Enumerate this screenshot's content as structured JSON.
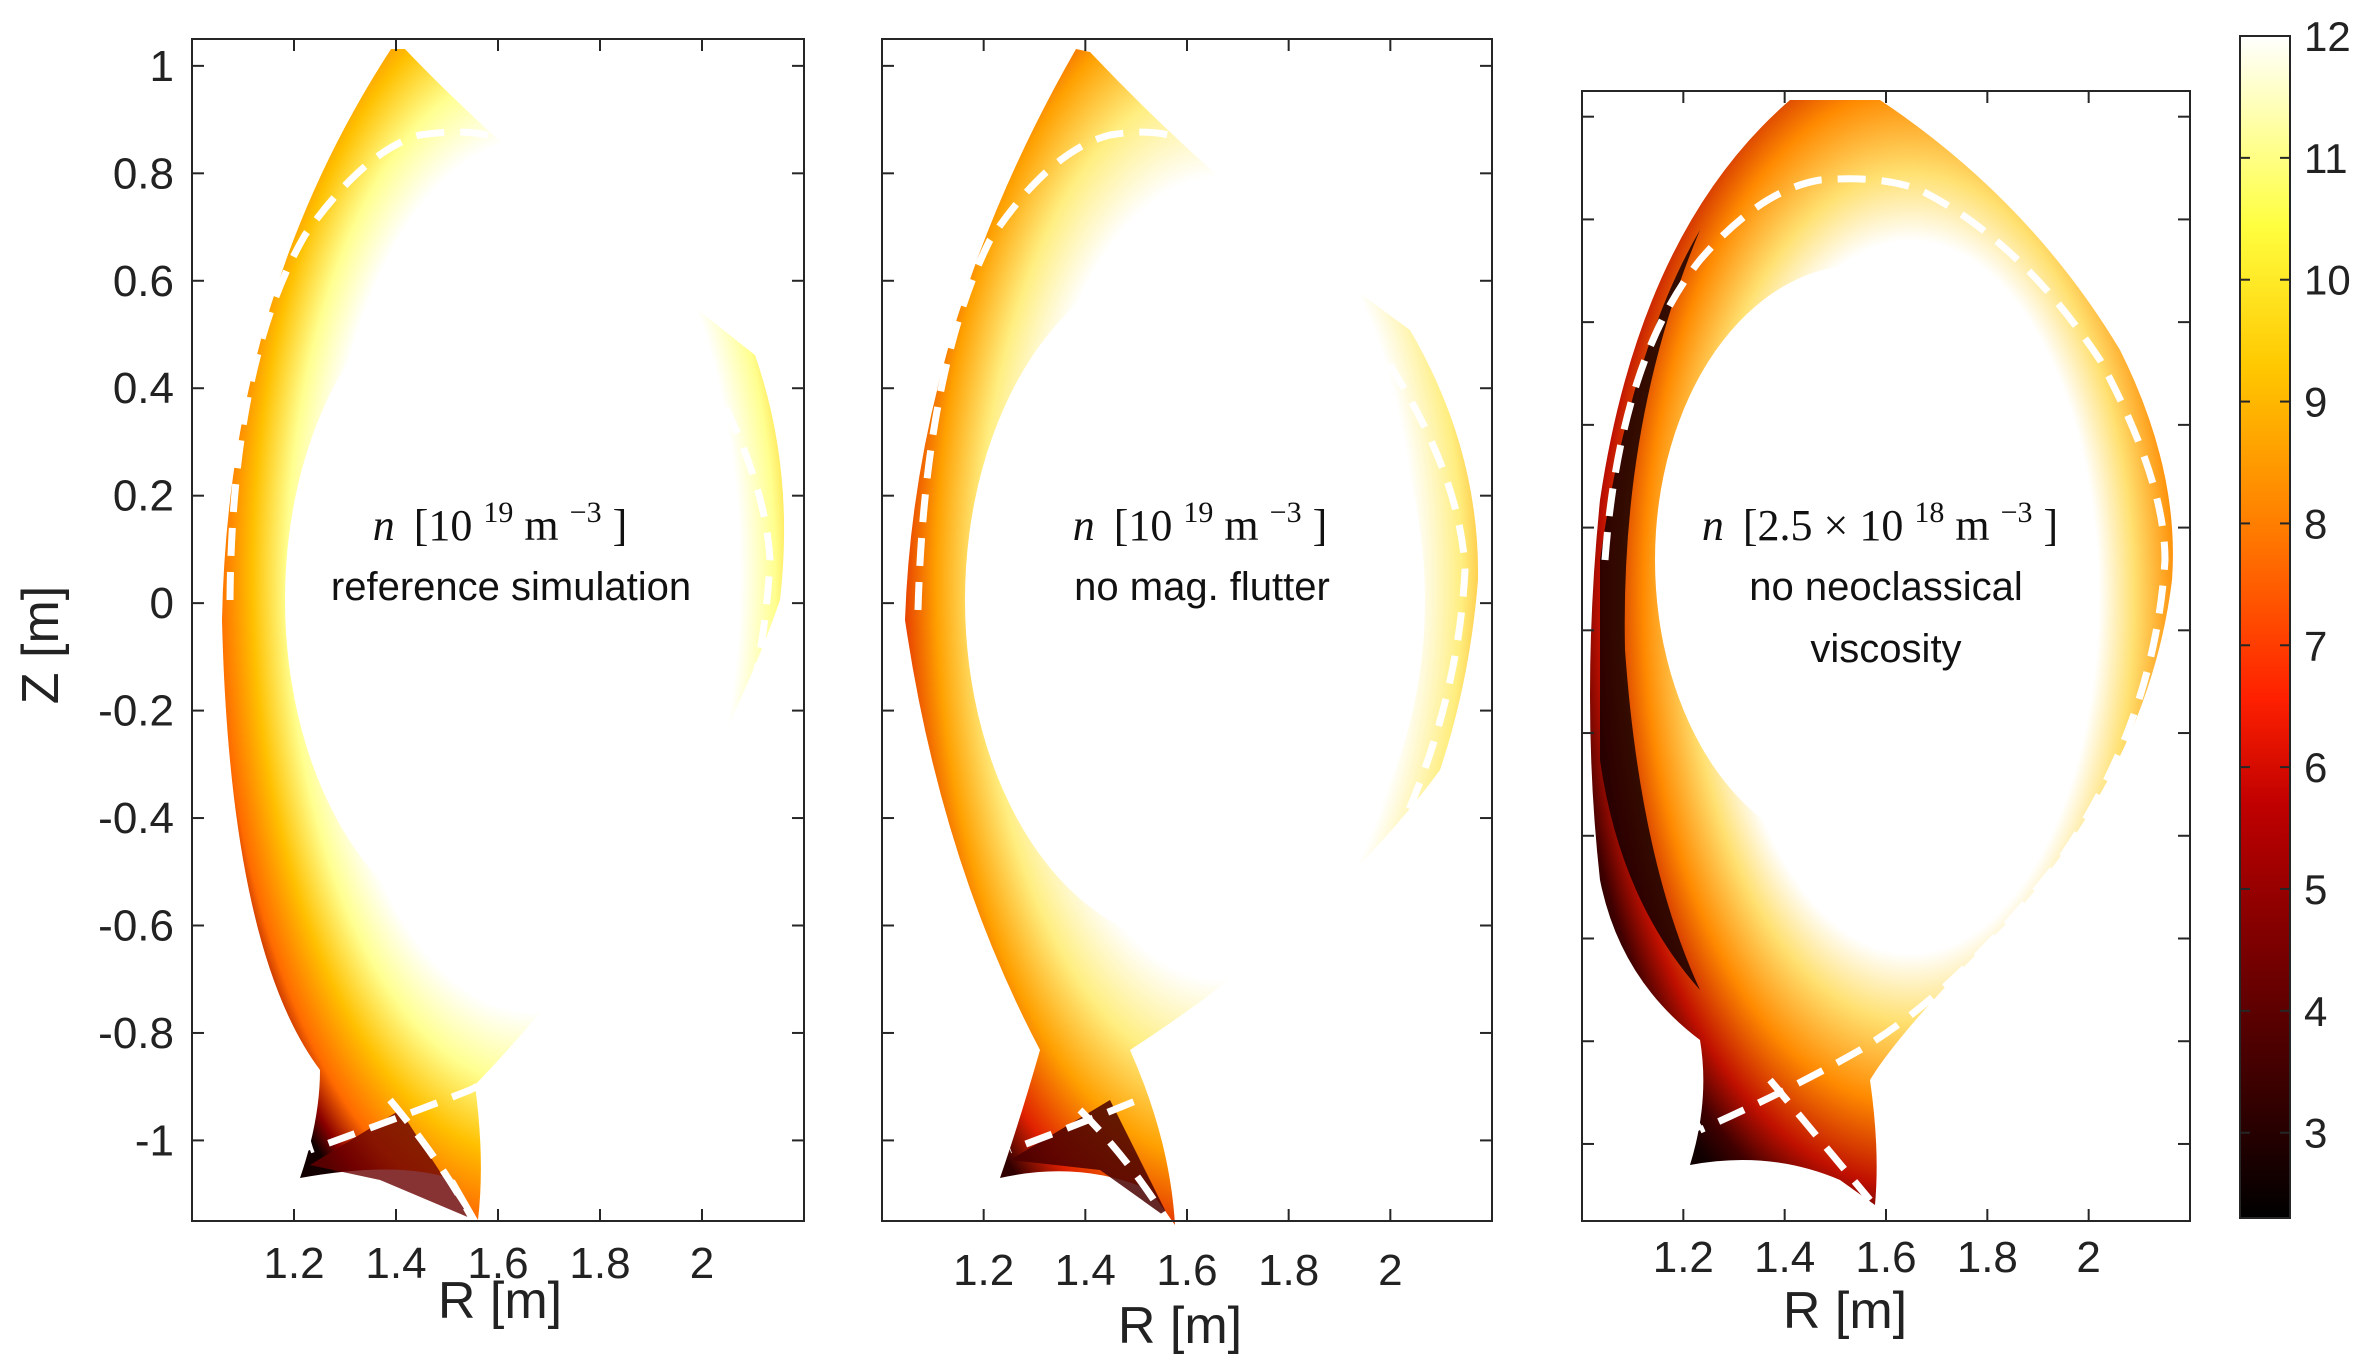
{
  "colors": {
    "axis": "#262626",
    "separatrix": "#ffffff",
    "colormap": [
      "#000000",
      "#5a0000",
      "#b00000",
      "#ff2a00",
      "#ff7a00",
      "#ffc000",
      "#ffff40",
      "#ffffff"
    ]
  },
  "chart_data": [
    {
      "type": "heatmap",
      "panel": "reference",
      "annotation": {
        "var": "n",
        "unit": "[10",
        "exp": "19",
        "unit_tail": " m",
        "unit_exp": "−3",
        "close": "]",
        "caption": [
          "reference simulation"
        ]
      },
      "xlabel": "R [m]",
      "ylabel": "Z [m]",
      "xlim": [
        1.0,
        2.2
      ],
      "ylim": [
        -1.15,
        1.05
      ],
      "xticks": [
        1.2,
        1.4,
        1.6,
        1.8,
        2.0
      ],
      "xtick_labels": [
        "1.2",
        "1.4",
        "1.6",
        "1.8",
        "2"
      ],
      "yticks": [
        1,
        0.8,
        0.6,
        0.4,
        0.2,
        0,
        -0.2,
        -0.4,
        -0.6,
        -0.8,
        -1
      ],
      "ytick_labels": [
        "1",
        "0.8",
        "0.6",
        "0.4",
        "0.2",
        "0",
        "-0.2",
        "-0.4",
        "-0.6",
        "-0.8",
        "-1"
      ]
    },
    {
      "type": "heatmap",
      "panel": "no-flutter",
      "annotation": {
        "var": "n",
        "unit": "[10",
        "exp": "19",
        "unit_tail": " m",
        "unit_exp": "−3",
        "close": "]",
        "caption": [
          "no mag. flutter"
        ]
      },
      "xlabel": "R [m]",
      "xlim": [
        1.0,
        2.2
      ],
      "ylim": [
        -1.15,
        1.05
      ],
      "xticks": [
        1.2,
        1.4,
        1.6,
        1.8,
        2.0
      ],
      "xtick_labels": [
        "1.2",
        "1.4",
        "1.6",
        "1.8",
        "2"
      ]
    },
    {
      "type": "heatmap",
      "panel": "no-viscosity",
      "annotation": {
        "var": "n",
        "unit": "[2.5 × 10",
        "exp": "18",
        "unit_tail": " m",
        "unit_exp": "−3",
        "close": "]",
        "caption": [
          "no neoclassical",
          "viscosity"
        ]
      },
      "xlabel": "R [m]",
      "xlim": [
        1.0,
        2.2
      ],
      "ylim": [
        -1.15,
        1.05
      ],
      "xticks": [
        1.2,
        1.4,
        1.6,
        1.8,
        2.0
      ],
      "xtick_labels": [
        "1.2",
        "1.4",
        "1.6",
        "1.8",
        "2"
      ]
    },
    {
      "type": "colorbar",
      "range": [
        2.3,
        12
      ],
      "ticks": [
        3,
        4,
        5,
        6,
        7,
        8,
        9,
        10,
        11,
        12
      ],
      "tick_labels": [
        "3",
        "4",
        "5",
        "6",
        "7",
        "8",
        "9",
        "10",
        "11",
        "12"
      ]
    }
  ]
}
